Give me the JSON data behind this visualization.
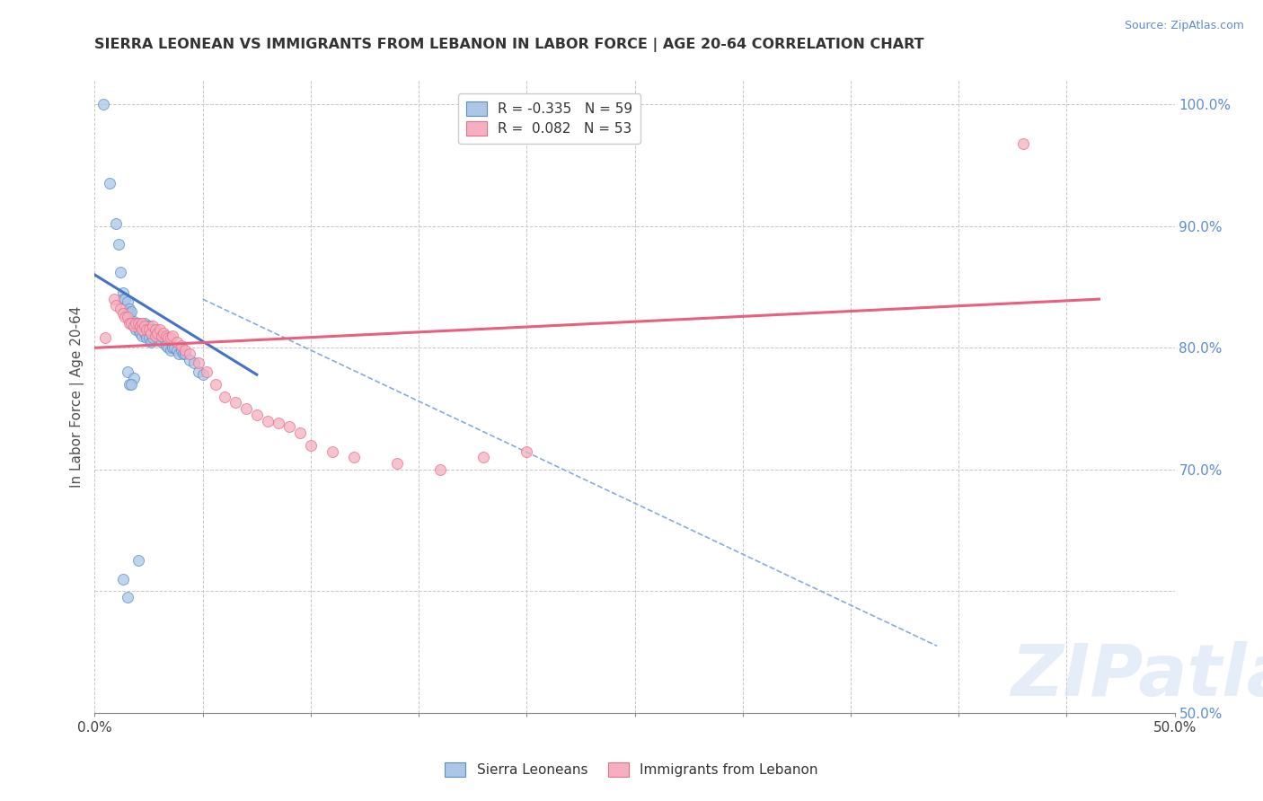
{
  "title": "SIERRA LEONEAN VS IMMIGRANTS FROM LEBANON IN LABOR FORCE | AGE 20-64 CORRELATION CHART",
  "source": "Source: ZipAtlas.com",
  "ylabel": "In Labor Force | Age 20-64",
  "xlim": [
    0.0,
    0.5
  ],
  "ylim": [
    0.5,
    1.02
  ],
  "xticks": [
    0.0,
    0.05,
    0.1,
    0.15,
    0.2,
    0.25,
    0.3,
    0.35,
    0.4,
    0.45,
    0.5
  ],
  "xtick_labels": [
    "0.0%",
    "",
    "",
    "",
    "",
    "",
    "",
    "",
    "",
    "",
    "50.0%"
  ],
  "right_yticks": [
    0.5,
    0.6,
    0.7,
    0.8,
    0.9,
    1.0
  ],
  "right_ytick_labels": [
    "50.0%",
    "",
    "70.0%",
    "80.0%",
    "90.0%",
    "100.0%"
  ],
  "grid_yticks": [
    0.6,
    0.7,
    0.8,
    0.9,
    1.0
  ],
  "watermark": "ZIPatlas",
  "legend_r1_label": "R = -0.335",
  "legend_r1_n": "N = 59",
  "legend_r2_label": "R =  0.082",
  "legend_r2_n": "N = 53",
  "blue_color": "#adc6e8",
  "pink_color": "#f5afc0",
  "blue_edge_color": "#5b8ec4",
  "pink_edge_color": "#e8708a",
  "blue_line_color": "#4472c4",
  "pink_line_color": "#e86080",
  "title_color": "#333333",
  "right_axis_color": "#5b8cd4",
  "grid_color": "#c8c8c8",
  "blue_scatter_x": [
    0.004,
    0.007,
    0.01,
    0.011,
    0.012,
    0.013,
    0.013,
    0.014,
    0.015,
    0.015,
    0.016,
    0.016,
    0.017,
    0.018,
    0.018,
    0.019,
    0.019,
    0.02,
    0.02,
    0.021,
    0.021,
    0.022,
    0.022,
    0.023,
    0.023,
    0.024,
    0.024,
    0.025,
    0.025,
    0.026,
    0.026,
    0.027,
    0.027,
    0.028,
    0.029,
    0.03,
    0.031,
    0.032,
    0.033,
    0.034,
    0.035,
    0.036,
    0.037,
    0.038,
    0.039,
    0.04,
    0.041,
    0.042,
    0.044,
    0.046,
    0.048,
    0.05,
    0.015,
    0.018,
    0.016,
    0.02,
    0.013,
    0.015,
    0.017
  ],
  "blue_scatter_y": [
    1.0,
    0.935,
    0.902,
    0.885,
    0.862,
    0.845,
    0.84,
    0.84,
    0.838,
    0.83,
    0.832,
    0.828,
    0.83,
    0.822,
    0.818,
    0.82,
    0.815,
    0.82,
    0.815,
    0.82,
    0.812,
    0.818,
    0.81,
    0.82,
    0.812,
    0.818,
    0.808,
    0.818,
    0.808,
    0.815,
    0.805,
    0.815,
    0.808,
    0.812,
    0.808,
    0.81,
    0.805,
    0.808,
    0.802,
    0.8,
    0.798,
    0.8,
    0.8,
    0.798,
    0.795,
    0.798,
    0.795,
    0.795,
    0.79,
    0.788,
    0.78,
    0.778,
    0.78,
    0.775,
    0.77,
    0.625,
    0.61,
    0.595,
    0.77
  ],
  "pink_scatter_x": [
    0.005,
    0.009,
    0.01,
    0.012,
    0.013,
    0.014,
    0.015,
    0.016,
    0.017,
    0.018,
    0.019,
    0.02,
    0.021,
    0.022,
    0.022,
    0.023,
    0.024,
    0.025,
    0.026,
    0.027,
    0.028,
    0.028,
    0.029,
    0.03,
    0.031,
    0.032,
    0.033,
    0.034,
    0.035,
    0.036,
    0.038,
    0.04,
    0.042,
    0.044,
    0.048,
    0.052,
    0.056,
    0.06,
    0.065,
    0.07,
    0.075,
    0.08,
    0.085,
    0.09,
    0.095,
    0.1,
    0.11,
    0.12,
    0.14,
    0.16,
    0.18,
    0.2,
    0.43
  ],
  "pink_scatter_y": [
    0.808,
    0.84,
    0.835,
    0.832,
    0.828,
    0.825,
    0.825,
    0.82,
    0.82,
    0.818,
    0.82,
    0.82,
    0.818,
    0.82,
    0.815,
    0.818,
    0.815,
    0.815,
    0.812,
    0.818,
    0.815,
    0.81,
    0.812,
    0.815,
    0.81,
    0.812,
    0.81,
    0.808,
    0.808,
    0.81,
    0.805,
    0.802,
    0.798,
    0.795,
    0.788,
    0.78,
    0.77,
    0.76,
    0.755,
    0.75,
    0.745,
    0.74,
    0.738,
    0.735,
    0.73,
    0.72,
    0.715,
    0.71,
    0.705,
    0.7,
    0.71,
    0.715,
    0.968
  ],
  "blue_trend_x": [
    0.0,
    0.075
  ],
  "blue_trend_y": [
    0.86,
    0.778
  ],
  "pink_trend_x": [
    0.0,
    0.465
  ],
  "pink_trend_y": [
    0.8,
    0.84
  ],
  "dashed_line_x": [
    0.05,
    0.39
  ],
  "dashed_line_y": [
    0.84,
    0.555
  ]
}
